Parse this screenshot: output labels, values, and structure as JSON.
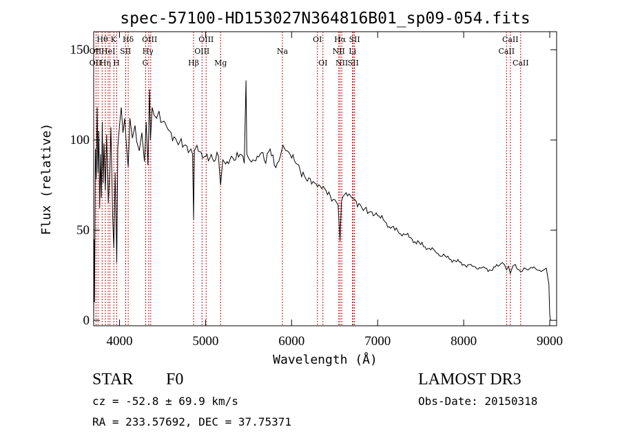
{
  "chart_data": {
    "type": "line",
    "title": "spec-57100-HD153027N364816B01_sp09-054.fits",
    "xlabel": "Wavelength (Å)",
    "ylabel": "Flux (relative)",
    "xlim": [
      3700,
      9080
    ],
    "ylim": [
      -3,
      160
    ],
    "xticks": [
      4000,
      5000,
      6000,
      7000,
      8000,
      9000
    ],
    "yticks": [
      0,
      50,
      100,
      150
    ],
    "grid": false,
    "series": [
      {
        "name": "spectrum",
        "x": [
          3700,
          3705,
          3710,
          3720,
          3730,
          3740,
          3750,
          3760,
          3770,
          3780,
          3790,
          3800,
          3810,
          3820,
          3835,
          3850,
          3870,
          3889,
          3900,
          3920,
          3934,
          3950,
          3968,
          3980,
          4000,
          4020,
          4040,
          4060,
          4080,
          4101,
          4120,
          4150,
          4180,
          4200,
          4230,
          4260,
          4290,
          4310,
          4330,
          4340,
          4350,
          4360,
          4380,
          4400,
          4430,
          4460,
          4500,
          4550,
          4600,
          4650,
          4700,
          4750,
          4800,
          4830,
          4850,
          4861,
          4870,
          4900,
          4950,
          5000,
          5050,
          5100,
          5150,
          5175,
          5200,
          5250,
          5300,
          5350,
          5400,
          5450,
          5470,
          5480,
          5500,
          5550,
          5600,
          5650,
          5700,
          5750,
          5800,
          5850,
          5893,
          5900,
          5950,
          6000,
          6050,
          6100,
          6150,
          6200,
          6250,
          6300,
          6350,
          6400,
          6450,
          6500,
          6540,
          6563,
          6580,
          6600,
          6650,
          6700,
          6750,
          6800,
          6850,
          6900,
          6950,
          7000,
          7100,
          7200,
          7300,
          7400,
          7500,
          7600,
          7700,
          7800,
          7900,
          8000,
          8100,
          8200,
          8300,
          8400,
          8450,
          8498,
          8520,
          8542,
          8570,
          8600,
          8662,
          8700,
          8750,
          8800,
          8850,
          8900,
          8930,
          8960,
          8990,
          9000,
          9010
        ],
        "values": [
          0,
          45,
          10,
          95,
          78,
          118,
          82,
          105,
          62,
          92,
          68,
          110,
          76,
          98,
          72,
          103,
          65,
          85,
          107,
          58,
          40,
          82,
          32,
          96,
          108,
          118,
          104,
          112,
          97,
          85,
          112,
          101,
          108,
          99,
          94,
          104,
          88,
          110,
          86,
          105,
          128,
          100,
          118,
          114,
          112,
          116,
          110,
          107,
          104,
          101,
          99,
          97,
          93,
          95,
          92,
          56,
          94,
          97,
          93,
          91,
          90,
          88,
          91,
          75,
          89,
          88,
          91,
          89,
          92,
          87,
          133,
          92,
          90,
          89,
          91,
          93,
          87,
          95,
          86,
          88,
          96,
          97,
          94,
          90,
          87,
          83,
          80,
          79,
          77,
          74,
          73,
          72,
          69,
          67,
          64,
          44,
          66,
          69,
          69,
          68,
          66,
          64,
          62,
          60,
          58,
          58,
          54,
          50,
          48,
          45,
          42,
          40,
          37,
          35,
          33,
          31,
          30,
          29,
          28,
          30,
          32,
          28,
          30,
          26,
          30,
          31,
          27,
          29,
          28,
          29,
          28,
          27,
          28,
          29,
          20,
          3,
          0
        ]
      }
    ],
    "lines": [
      {
        "wave": 3727,
        "label": "OII"
      },
      {
        "wave": 3750,
        "label": "OII"
      },
      {
        "wave": 3798,
        "label": "Hθ"
      },
      {
        "wave": 3835,
        "label": "Hη"
      },
      {
        "wave": 3868,
        "label": "He I"
      },
      {
        "wave": 3889,
        "label": "He"
      },
      {
        "wave": 3934,
        "label": "K"
      },
      {
        "wave": 3968,
        "label": "H"
      },
      {
        "wave": 4072,
        "label": "SII"
      },
      {
        "wave": 4101,
        "label": "Hδ"
      },
      {
        "wave": 4304,
        "label": "G"
      },
      {
        "wave": 4340,
        "label": "Hγ"
      },
      {
        "wave": 4363,
        "label": "OIII"
      },
      {
        "wave": 4861,
        "label": "Hβ"
      },
      {
        "wave": 4959,
        "label": "OIII"
      },
      {
        "wave": 5007,
        "label": "OIII"
      },
      {
        "wave": 5175,
        "label": "Mg"
      },
      {
        "wave": 5893,
        "label": "Na"
      },
      {
        "wave": 6300,
        "label": "OI"
      },
      {
        "wave": 6364,
        "label": "OI"
      },
      {
        "wave": 6548,
        "label": "NII"
      },
      {
        "wave": 6563,
        "label": "Hα"
      },
      {
        "wave": 6583,
        "label": "NII"
      },
      {
        "wave": 6708,
        "label": "Li"
      },
      {
        "wave": 6716,
        "label": "SII"
      },
      {
        "wave": 6731,
        "label": "SII"
      },
      {
        "wave": 8498,
        "label": "CaII"
      },
      {
        "wave": 8542,
        "label": "CaII"
      },
      {
        "wave": 8662,
        "label": "CaII"
      }
    ],
    "line_labels": [
      {
        "wave": 3720,
        "row": 1,
        "text": "OII"
      },
      {
        "wave": 3720,
        "row": 2,
        "text": "OII"
      },
      {
        "wave": 3800,
        "row": 0,
        "text": "Hθ"
      },
      {
        "wave": 3835,
        "row": 2,
        "text": "Hη"
      },
      {
        "wave": 3870,
        "row": 1,
        "text": "HeI"
      },
      {
        "wave": 3930,
        "row": 0,
        "text": "K"
      },
      {
        "wave": 3965,
        "row": 2,
        "text": "H"
      },
      {
        "wave": 4070,
        "row": 1,
        "text": "SII"
      },
      {
        "wave": 4101,
        "row": 0,
        "text": "Hδ"
      },
      {
        "wave": 4300,
        "row": 2,
        "text": "G"
      },
      {
        "wave": 4330,
        "row": 1,
        "text": "Hγ"
      },
      {
        "wave": 4350,
        "row": 0,
        "text": "OIII"
      },
      {
        "wave": 4861,
        "row": 2,
        "text": "Hβ"
      },
      {
        "wave": 4959,
        "row": 1,
        "text": "OIII"
      },
      {
        "wave": 5007,
        "row": 0,
        "text": "OIII"
      },
      {
        "wave": 5175,
        "row": 2,
        "text": "Mg"
      },
      {
        "wave": 5893,
        "row": 1,
        "text": "Na"
      },
      {
        "wave": 6300,
        "row": 0,
        "text": "OI"
      },
      {
        "wave": 6364,
        "row": 2,
        "text": "OI"
      },
      {
        "wave": 6548,
        "row": 1,
        "text": "NII"
      },
      {
        "wave": 6563,
        "row": 0,
        "text": "Hα"
      },
      {
        "wave": 6583,
        "row": 2,
        "text": "NII"
      },
      {
        "wave": 6708,
        "row": 1,
        "text": "Li"
      },
      {
        "wave": 6716,
        "row": 2,
        "text": "SII"
      },
      {
        "wave": 6731,
        "row": 0,
        "text": "SII"
      },
      {
        "wave": 8498,
        "row": 1,
        "text": "CaII"
      },
      {
        "wave": 8542,
        "row": 0,
        "text": "CaII"
      },
      {
        "wave": 8662,
        "row": 2,
        "text": "CaII"
      }
    ],
    "line_color": "#cc0000",
    "spectrum_color": "#000000"
  },
  "info": {
    "object_type": "STAR",
    "subclass": "F0",
    "survey": "LAMOST DR3",
    "redshift_text": "cz = -52.8 ± 69.9 km/s",
    "obs_date": "Obs-Date: 20150318",
    "coords": "RA = 233.57692, DEC =  37.75371"
  }
}
